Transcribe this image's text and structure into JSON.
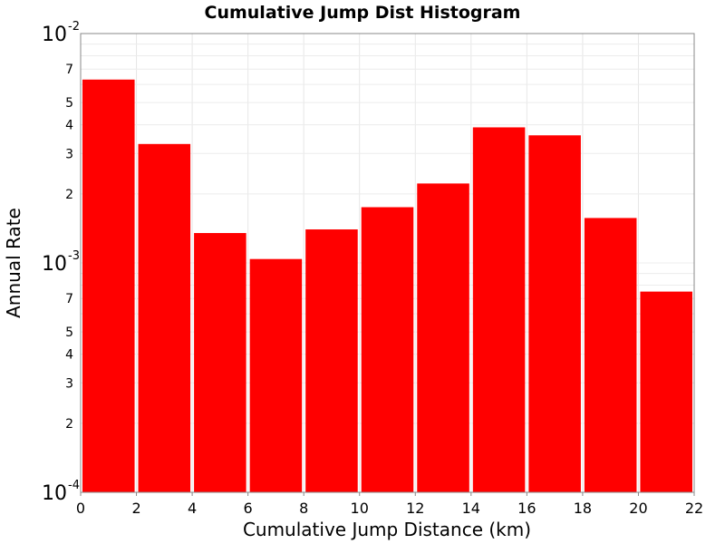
{
  "chart_data": {
    "type": "bar",
    "title": "Cumulative Jump Dist Histogram",
    "xlabel": "Cumulative Jump Distance (km)",
    "ylabel": "Annual Rate",
    "xlim": [
      0,
      22
    ],
    "ylim": [
      0.0001,
      0.01
    ],
    "y_scale": "log",
    "grid": true,
    "bar_color": "#ff0000",
    "x_ticks": [
      "0",
      "2",
      "4",
      "6",
      "8",
      "10",
      "12",
      "14",
      "16",
      "18",
      "20",
      "22"
    ],
    "y_major_ticks": [
      {
        "value": 0.01,
        "base": "10",
        "exp": "-2"
      },
      {
        "value": 0.001,
        "base": "10",
        "exp": "-3"
      },
      {
        "value": 0.0001,
        "base": "10",
        "exp": "-4"
      }
    ],
    "y_minor_ticks": [
      {
        "value": 0.007,
        "label": "7"
      },
      {
        "value": 0.005,
        "label": "5"
      },
      {
        "value": 0.004,
        "label": "4"
      },
      {
        "value": 0.003,
        "label": "3"
      },
      {
        "value": 0.002,
        "label": "2"
      },
      {
        "value": 0.0007,
        "label": "7"
      },
      {
        "value": 0.0005,
        "label": "5"
      },
      {
        "value": 0.0004,
        "label": "4"
      },
      {
        "value": 0.0003,
        "label": "3"
      },
      {
        "value": 0.0002,
        "label": "2"
      }
    ],
    "bins": [
      {
        "x_start": 0,
        "x_end": 2,
        "value": 0.0063
      },
      {
        "x_start": 2,
        "x_end": 4,
        "value": 0.0033
      },
      {
        "x_start": 4,
        "x_end": 6,
        "value": 0.00135
      },
      {
        "x_start": 6,
        "x_end": 8,
        "value": 0.00104
      },
      {
        "x_start": 8,
        "x_end": 10,
        "value": 0.0014
      },
      {
        "x_start": 10,
        "x_end": 12,
        "value": 0.00175
      },
      {
        "x_start": 12,
        "x_end": 14,
        "value": 0.00222
      },
      {
        "x_start": 14,
        "x_end": 16,
        "value": 0.0039
      },
      {
        "x_start": 16,
        "x_end": 18,
        "value": 0.0036
      },
      {
        "x_start": 18,
        "x_end": 20,
        "value": 0.00157
      },
      {
        "x_start": 20,
        "x_end": 22,
        "value": 0.00075
      }
    ]
  }
}
